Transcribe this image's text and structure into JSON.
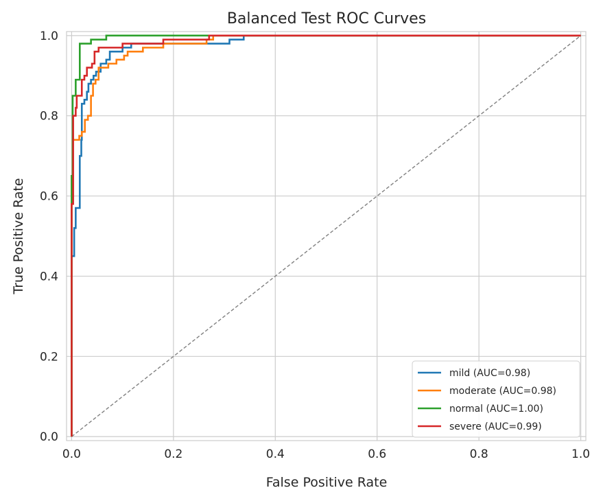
{
  "chart_data": {
    "type": "line",
    "title": "Balanced Test ROC Curves",
    "xlabel": "False Positive Rate",
    "ylabel": "True Positive Rate",
    "xlim": [
      -0.01,
      1.01
    ],
    "ylim": [
      -0.01,
      1.01
    ],
    "xticks": [
      "0.0",
      "0.2",
      "0.4",
      "0.6",
      "0.8",
      "1.0"
    ],
    "yticks": [
      "0.0",
      "0.2",
      "0.4",
      "0.6",
      "0.8",
      "1.0"
    ],
    "grid": true,
    "legend_position": "lower right",
    "baseline": {
      "style": "dashed",
      "color": "#808080",
      "points": [
        [
          0,
          0
        ],
        [
          1,
          1
        ]
      ]
    },
    "series": [
      {
        "name": "mild (AUC=0.98)",
        "color": "#1f77b4",
        "points": [
          [
            0,
            0
          ],
          [
            0,
            0.45
          ],
          [
            0.005,
            0.45
          ],
          [
            0.005,
            0.52
          ],
          [
            0.008,
            0.52
          ],
          [
            0.008,
            0.57
          ],
          [
            0.016,
            0.57
          ],
          [
            0.016,
            0.7
          ],
          [
            0.019,
            0.7
          ],
          [
            0.019,
            0.74
          ],
          [
            0.02,
            0.74
          ],
          [
            0.02,
            0.83
          ],
          [
            0.025,
            0.83
          ],
          [
            0.025,
            0.84
          ],
          [
            0.03,
            0.84
          ],
          [
            0.03,
            0.86
          ],
          [
            0.033,
            0.86
          ],
          [
            0.033,
            0.88
          ],
          [
            0.038,
            0.88
          ],
          [
            0.038,
            0.89
          ],
          [
            0.043,
            0.89
          ],
          [
            0.043,
            0.9
          ],
          [
            0.048,
            0.9
          ],
          [
            0.048,
            0.91
          ],
          [
            0.057,
            0.91
          ],
          [
            0.057,
            0.93
          ],
          [
            0.068,
            0.93
          ],
          [
            0.068,
            0.94
          ],
          [
            0.075,
            0.94
          ],
          [
            0.075,
            0.96
          ],
          [
            0.1,
            0.96
          ],
          [
            0.1,
            0.97
          ],
          [
            0.117,
            0.97
          ],
          [
            0.117,
            0.98
          ],
          [
            0.31,
            0.98
          ],
          [
            0.31,
            0.99
          ],
          [
            0.338,
            0.99
          ],
          [
            0.338,
            1.0
          ],
          [
            1.0,
            1.0
          ]
        ]
      },
      {
        "name": "moderate (AUC=0.98)",
        "color": "#ff7f0e",
        "points": [
          [
            0,
            0
          ],
          [
            0,
            0.65
          ],
          [
            0.002,
            0.65
          ],
          [
            0.002,
            0.74
          ],
          [
            0.015,
            0.74
          ],
          [
            0.015,
            0.75
          ],
          [
            0.02,
            0.75
          ],
          [
            0.02,
            0.76
          ],
          [
            0.026,
            0.76
          ],
          [
            0.026,
            0.79
          ],
          [
            0.032,
            0.79
          ],
          [
            0.032,
            0.8
          ],
          [
            0.038,
            0.8
          ],
          [
            0.038,
            0.85
          ],
          [
            0.042,
            0.85
          ],
          [
            0.042,
            0.88
          ],
          [
            0.047,
            0.88
          ],
          [
            0.047,
            0.89
          ],
          [
            0.053,
            0.89
          ],
          [
            0.053,
            0.92
          ],
          [
            0.072,
            0.92
          ],
          [
            0.072,
            0.93
          ],
          [
            0.088,
            0.93
          ],
          [
            0.088,
            0.94
          ],
          [
            0.103,
            0.94
          ],
          [
            0.103,
            0.95
          ],
          [
            0.11,
            0.95
          ],
          [
            0.11,
            0.96
          ],
          [
            0.14,
            0.96
          ],
          [
            0.14,
            0.97
          ],
          [
            0.18,
            0.97
          ],
          [
            0.18,
            0.98
          ],
          [
            0.265,
            0.98
          ],
          [
            0.265,
            0.99
          ],
          [
            0.278,
            0.99
          ],
          [
            0.278,
            1.0
          ],
          [
            1.0,
            1.0
          ]
        ]
      },
      {
        "name": "normal (AUC=1.00)",
        "color": "#2ca02c",
        "points": [
          [
            0,
            0
          ],
          [
            0,
            0.65
          ],
          [
            0.002,
            0.65
          ],
          [
            0.002,
            0.85
          ],
          [
            0.008,
            0.85
          ],
          [
            0.008,
            0.89
          ],
          [
            0.016,
            0.89
          ],
          [
            0.016,
            0.98
          ],
          [
            0.038,
            0.98
          ],
          [
            0.038,
            0.99
          ],
          [
            0.068,
            0.99
          ],
          [
            0.068,
            1.0
          ],
          [
            1.0,
            1.0
          ]
        ]
      },
      {
        "name": "severe (AUC=0.99)",
        "color": "#d62728",
        "points": [
          [
            0,
            0
          ],
          [
            0,
            0.58
          ],
          [
            0.003,
            0.58
          ],
          [
            0.003,
            0.8
          ],
          [
            0.008,
            0.8
          ],
          [
            0.008,
            0.82
          ],
          [
            0.01,
            0.82
          ],
          [
            0.01,
            0.85
          ],
          [
            0.02,
            0.85
          ],
          [
            0.02,
            0.89
          ],
          [
            0.025,
            0.89
          ],
          [
            0.025,
            0.9
          ],
          [
            0.03,
            0.9
          ],
          [
            0.03,
            0.92
          ],
          [
            0.04,
            0.92
          ],
          [
            0.04,
            0.93
          ],
          [
            0.045,
            0.93
          ],
          [
            0.045,
            0.96
          ],
          [
            0.053,
            0.96
          ],
          [
            0.053,
            0.97
          ],
          [
            0.1,
            0.97
          ],
          [
            0.1,
            0.98
          ],
          [
            0.18,
            0.98
          ],
          [
            0.18,
            0.99
          ],
          [
            0.27,
            0.99
          ],
          [
            0.27,
            1.0
          ],
          [
            1.0,
            1.0
          ]
        ]
      }
    ]
  }
}
